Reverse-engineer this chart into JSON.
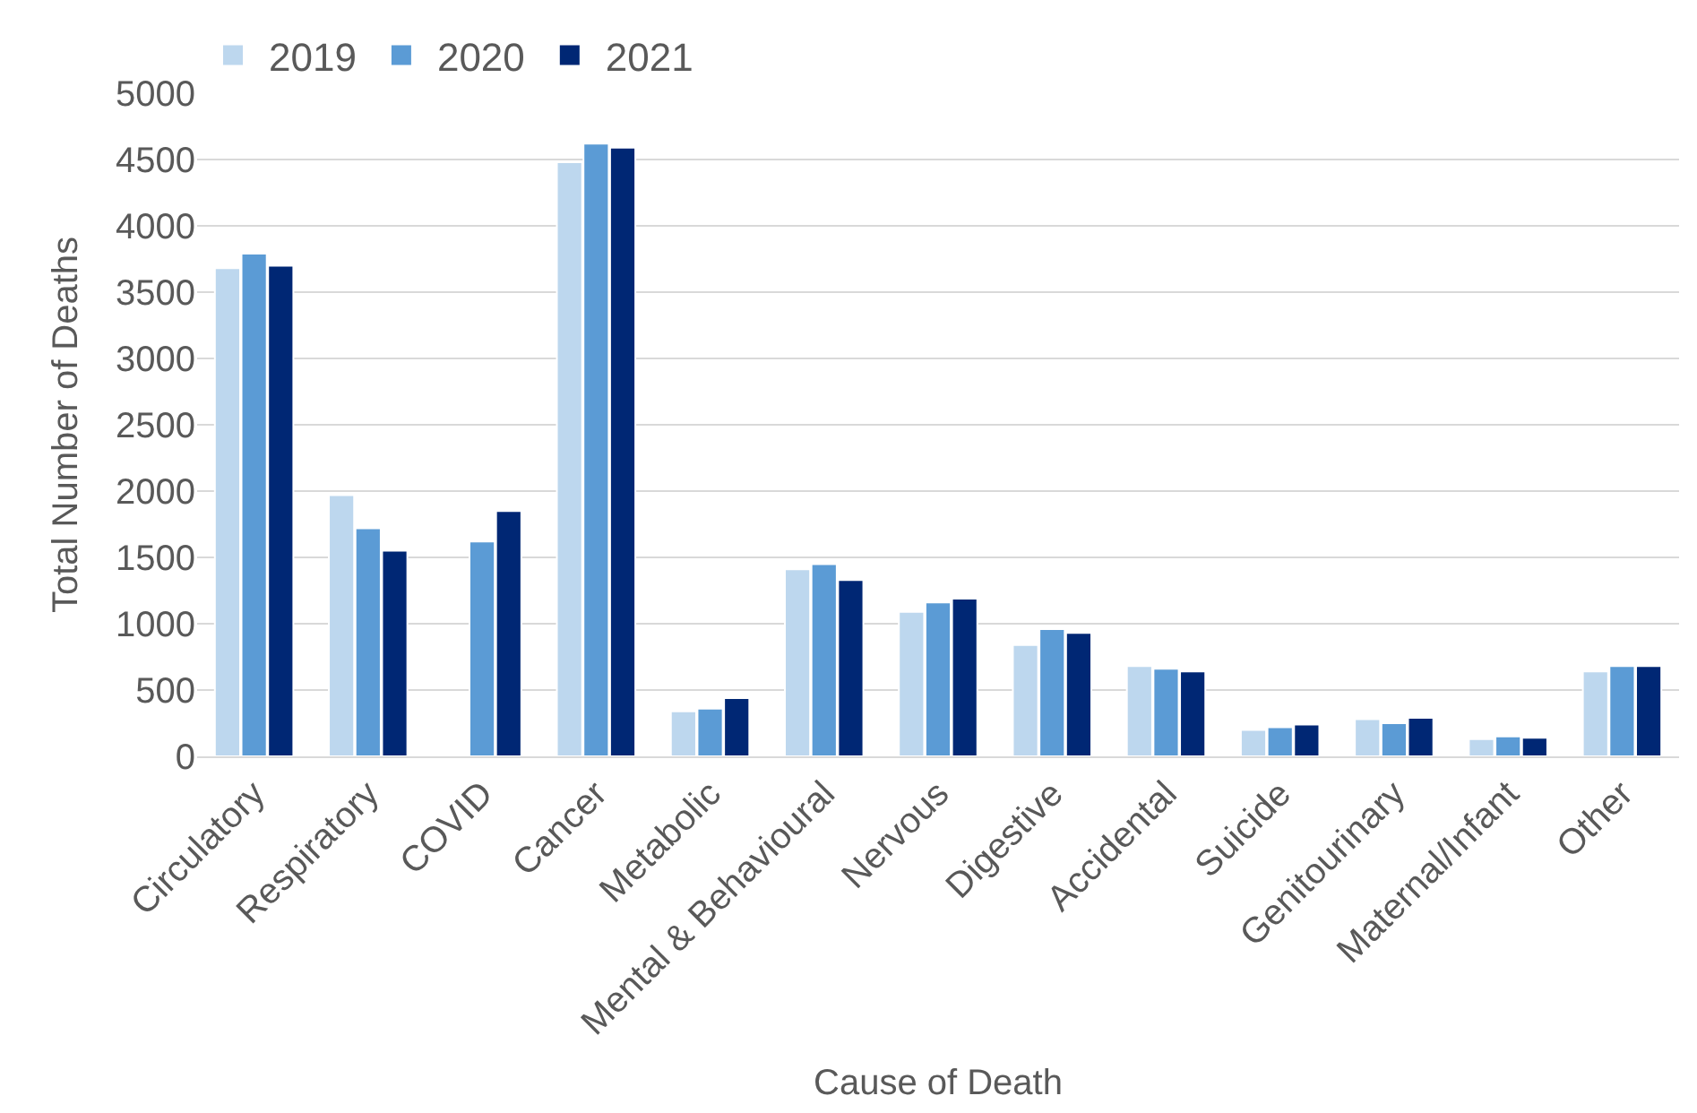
{
  "chart_data": {
    "type": "bar",
    "xlabel": "Cause of Death",
    "ylabel": "Total Number of Deaths",
    "categories": [
      "Circulatory",
      "Respiratory",
      "COVID",
      "Cancer",
      "Metabolic",
      "Mental & Behavioural",
      "Nervous",
      "Digestive",
      "Accidental",
      "Suicide",
      "Genitourinary",
      "Maternal/Infant",
      "Other"
    ],
    "series": [
      {
        "name": "2019",
        "color": "#bdd7ee",
        "values": [
          3680,
          1970,
          null,
          4480,
          340,
          1410,
          1090,
          840,
          680,
          200,
          280,
          130,
          640
        ]
      },
      {
        "name": "2020",
        "color": "#5b9bd5",
        "values": [
          3790,
          1720,
          1620,
          4620,
          360,
          1450,
          1160,
          960,
          660,
          220,
          250,
          150,
          680
        ]
      },
      {
        "name": "2021",
        "color": "#002774",
        "values": [
          3700,
          1550,
          1850,
          4590,
          440,
          1330,
          1190,
          930,
          640,
          240,
          290,
          140,
          680
        ]
      }
    ],
    "ylim": [
      0,
      5000
    ],
    "yticks": [
      0,
      500,
      1000,
      1500,
      2000,
      2500,
      3000,
      3500,
      4000,
      4500,
      5000
    ],
    "grid": "y",
    "legend": "top left"
  }
}
